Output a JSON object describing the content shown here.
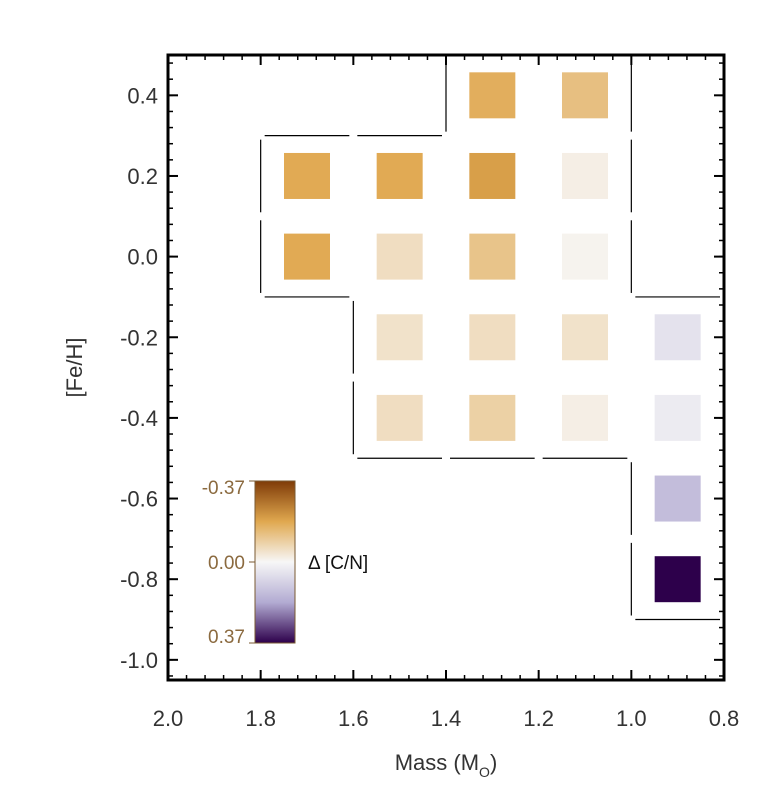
{
  "chart_data": {
    "type": "heatmap",
    "xlabel": "Mass (M",
    "xlabel_sub": "O",
    "xlabel_close": ")",
    "ylabel": "[Fe/H]",
    "xlim": [
      2.0,
      0.8
    ],
    "ylim": [
      -1.05,
      0.5
    ],
    "xticks": [
      2.0,
      1.8,
      1.6,
      1.4,
      1.2,
      1.0,
      0.8
    ],
    "xtick_labels": [
      "2.0",
      "1.8",
      "1.6",
      "1.4",
      "1.2",
      "1.0",
      "0.8"
    ],
    "yticks": [
      0.4,
      0.2,
      0.0,
      -0.2,
      -0.4,
      -0.6,
      -0.8,
      -1.0
    ],
    "ytick_labels": [
      "0.4",
      "0.2",
      "0.0",
      "-0.2",
      "-0.4",
      "-0.6",
      "-0.8",
      "-1.0"
    ],
    "colorbar": {
      "title": "Δ [C/N]",
      "tick_labels": [
        "-0.37",
        "0.00",
        "0.37"
      ],
      "range": [
        -0.37,
        0.37
      ],
      "colors": {
        "negative_end": "#7f3b08",
        "negative_mid": "#e0a84f",
        "zero": "#f7f7f7",
        "positive_mid": "#b2abd2",
        "positive_end": "#2d004b"
      }
    },
    "cells": [
      {
        "mass": 1.3,
        "feh": 0.4,
        "value": -0.17
      },
      {
        "mass": 1.1,
        "feh": 0.4,
        "value": -0.13
      },
      {
        "mass": 1.7,
        "feh": 0.2,
        "value": -0.18
      },
      {
        "mass": 1.5,
        "feh": 0.2,
        "value": -0.18
      },
      {
        "mass": 1.3,
        "feh": 0.2,
        "value": -0.2
      },
      {
        "mass": 1.1,
        "feh": 0.2,
        "value": -0.02
      },
      {
        "mass": 1.7,
        "feh": 0.0,
        "value": -0.18
      },
      {
        "mass": 1.5,
        "feh": 0.0,
        "value": -0.06
      },
      {
        "mass": 1.3,
        "feh": 0.0,
        "value": -0.12
      },
      {
        "mass": 1.1,
        "feh": 0.0,
        "value": -0.01
      },
      {
        "mass": 1.5,
        "feh": -0.2,
        "value": -0.05
      },
      {
        "mass": 1.3,
        "feh": -0.2,
        "value": -0.06
      },
      {
        "mass": 1.1,
        "feh": -0.2,
        "value": -0.05
      },
      {
        "mass": 0.9,
        "feh": -0.2,
        "value": 0.05
      },
      {
        "mass": 1.5,
        "feh": -0.4,
        "value": -0.06
      },
      {
        "mass": 1.3,
        "feh": -0.4,
        "value": -0.09
      },
      {
        "mass": 1.1,
        "feh": -0.4,
        "value": -0.02
      },
      {
        "mass": 0.9,
        "feh": -0.4,
        "value": 0.03
      },
      {
        "mass": 0.9,
        "feh": -0.6,
        "value": 0.14
      },
      {
        "mass": 0.9,
        "feh": -0.8,
        "value": 0.37
      }
    ],
    "grid": false
  }
}
